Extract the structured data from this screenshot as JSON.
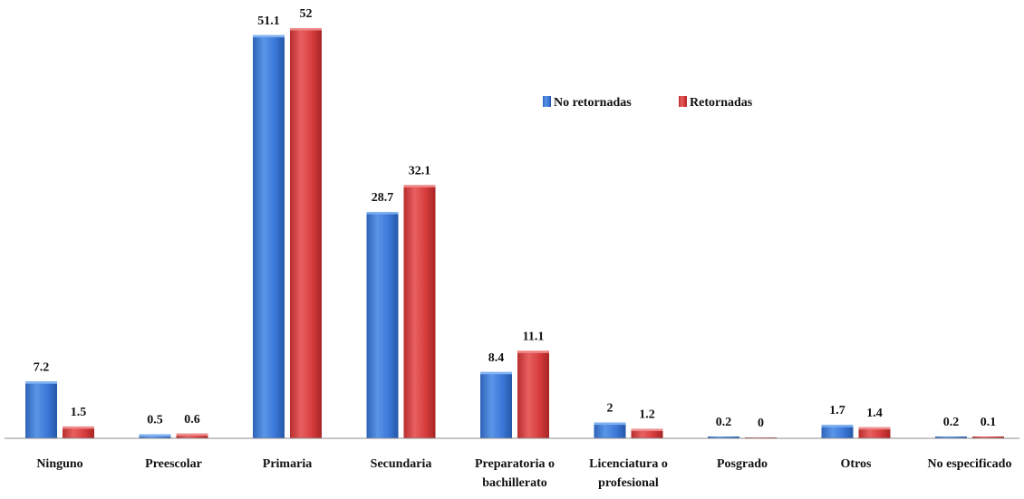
{
  "chart_data": {
    "type": "bar",
    "categories": [
      [
        "Ninguno"
      ],
      [
        "Preescolar"
      ],
      [
        "Primaria"
      ],
      [
        "Secundaria"
      ],
      [
        "Preparatoria o",
        "bachillerato"
      ],
      [
        "Licenciatura o",
        "profesional"
      ],
      [
        "Posgrado"
      ],
      [
        "Otros"
      ],
      [
        "No especificado"
      ]
    ],
    "series": [
      {
        "name": "No retornadas",
        "color": "#3B78D8",
        "values": [
          7.2,
          0.5,
          51.1,
          28.7,
          8.4,
          2,
          0.2,
          1.7,
          0.2
        ],
        "labels": [
          "7.2",
          "0.5",
          "51.1",
          "28.7",
          "8.4",
          "2",
          "0.2",
          "1.7",
          "0.2"
        ]
      },
      {
        "name": "Retornadas",
        "color": "#D63C3C",
        "values": [
          1.5,
          0.6,
          52,
          32.1,
          11.1,
          1.2,
          0,
          1.4,
          0.1
        ],
        "labels": [
          "1.5",
          "0.6",
          "52",
          "32.1",
          "11.1",
          "1.2",
          "0",
          "1.4",
          "0.1"
        ]
      }
    ],
    "ylim": [
      0,
      52
    ],
    "grid": false,
    "legend_position": "top-right"
  }
}
